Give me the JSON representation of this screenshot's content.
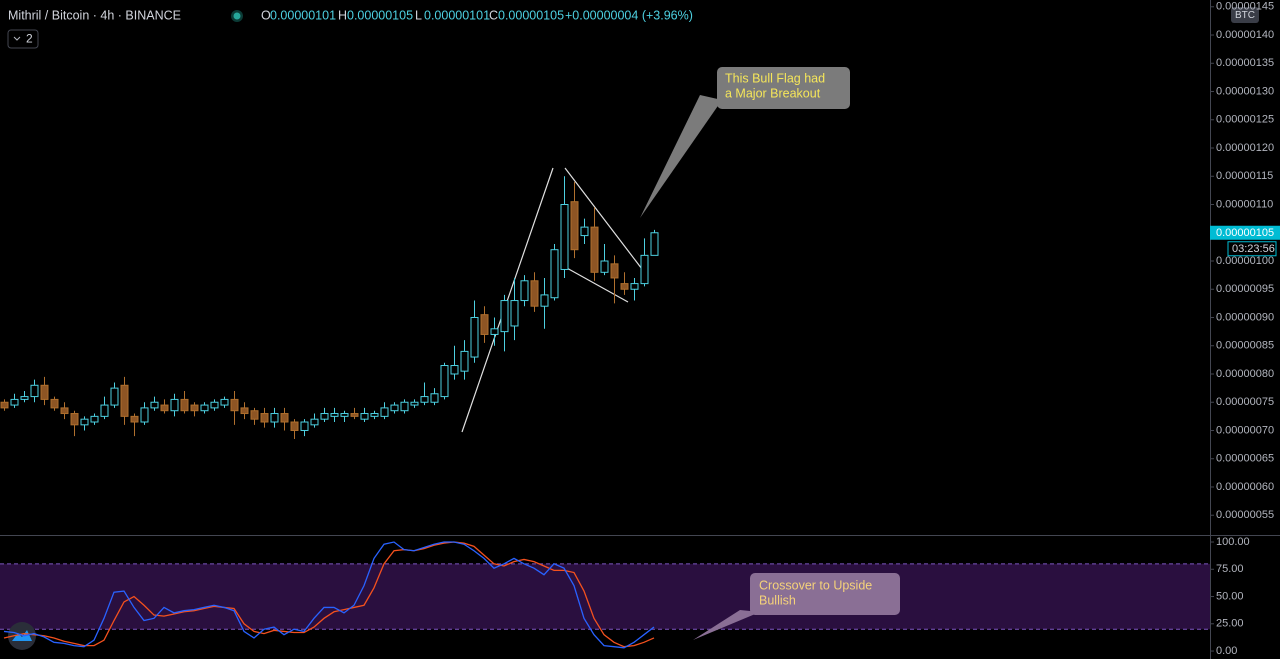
{
  "header": {
    "symbol": "Mithril / Bitcoin · 4h · BINANCE",
    "ohlc": [
      {
        "key": "O",
        "value": "0.00000101"
      },
      {
        "key": "H",
        "value": "0.00000105"
      },
      {
        "key": "L",
        "value": "0.00000101"
      },
      {
        "key": "C",
        "value": "0.00000105"
      }
    ],
    "change": "+0.00000004 (+3.96%)",
    "indicators": "2"
  },
  "chart_data": [
    {
      "type": "candlestick",
      "currency": "BTC",
      "up_color": "#4dd0e1",
      "down_color": "#8d5524",
      "ylim": [
        5.15e-07,
        1.462e-06
      ],
      "yticks": [
        {
          "value": 5.5e-07,
          "label": "0.00000055"
        },
        {
          "value": 6e-07,
          "label": "0.00000060"
        },
        {
          "value": 6.5e-07,
          "label": "0.00000065"
        },
        {
          "value": 7e-07,
          "label": "0.00000070"
        },
        {
          "value": 7.5e-07,
          "label": "0.00000075"
        },
        {
          "value": 8e-07,
          "label": "0.00000080"
        },
        {
          "value": 8.5e-07,
          "label": "0.00000085"
        },
        {
          "value": 9e-07,
          "label": "0.00000090"
        },
        {
          "value": 9.5e-07,
          "label": "0.00000095"
        },
        {
          "value": 1e-06,
          "label": "0.00000100"
        },
        {
          "value": 1.05e-06,
          "label": "0.00000105"
        },
        {
          "value": 1.1e-06,
          "label": "0.00000110"
        },
        {
          "value": 1.15e-06,
          "label": "0.00000115"
        },
        {
          "value": 1.2e-06,
          "label": "0.00000120"
        },
        {
          "value": 1.25e-06,
          "label": "0.00000125"
        },
        {
          "value": 1.3e-06,
          "label": "0.00000130"
        },
        {
          "value": 1.35e-06,
          "label": "0.00000135"
        },
        {
          "value": 1.4e-06,
          "label": "0.00000140"
        },
        {
          "value": 1.45e-06,
          "label": "0.00000145"
        }
      ],
      "last_price": {
        "value": 1.05e-06,
        "label": "0.00000105"
      },
      "countdown": "03:23:56",
      "annotations": [
        {
          "lines": [
            "This Bull Flag had",
            "a Major Breakout"
          ]
        }
      ],
      "open": [
        7.5e-07,
        7.45e-07,
        7.55e-07,
        7.6e-07,
        7.8e-07,
        7.55e-07,
        7.4e-07,
        7.3e-07,
        7.1e-07,
        7.15e-07,
        7.25e-07,
        7.45e-07,
        7.8e-07,
        7.25e-07,
        7.15e-07,
        7.4e-07,
        7.45e-07,
        7.35e-07,
        7.55e-07,
        7.45e-07,
        7.35e-07,
        7.4e-07,
        7.45e-07,
        7.55e-07,
        7.4e-07,
        7.35e-07,
        7.3e-07,
        7.15e-07,
        7.3e-07,
        7.15e-07,
        7e-07,
        7.1e-07,
        7.2e-07,
        7.25e-07,
        7.25e-07,
        7.3e-07,
        7.2e-07,
        7.25e-07,
        7.25e-07,
        7.35e-07,
        7.35e-07,
        7.45e-07,
        7.5e-07,
        7.5e-07,
        7.6e-07,
        8e-07,
        8.05e-07,
        8.3e-07,
        9.05e-07,
        8.7e-07,
        8.75e-07,
        8.85e-07,
        9.3e-07,
        9.65e-07,
        9.2e-07,
        9.35e-07,
        9.85e-07,
        1.105e-06,
        1.045e-06,
        1.06e-06,
        9.8e-07,
        9.95e-07,
        9.6e-07,
        9.5e-07,
        9.6e-07,
        1.01e-06
      ],
      "high": [
        7.55e-07,
        7.65e-07,
        7.7e-07,
        7.9e-07,
        7.95e-07,
        7.6e-07,
        7.5e-07,
        7.35e-07,
        7.25e-07,
        7.3e-07,
        7.6e-07,
        7.85e-07,
        7.95e-07,
        7.3e-07,
        7.5e-07,
        7.6e-07,
        7.55e-07,
        7.65e-07,
        7.7e-07,
        7.5e-07,
        7.5e-07,
        7.55e-07,
        7.6e-07,
        7.7e-07,
        7.5e-07,
        7.4e-07,
        7.4e-07,
        7.4e-07,
        7.4e-07,
        7.2e-07,
        7.2e-07,
        7.3e-07,
        7.4e-07,
        7.4e-07,
        7.35e-07,
        7.4e-07,
        7.4e-07,
        7.35e-07,
        7.5e-07,
        7.5e-07,
        7.55e-07,
        7.55e-07,
        7.85e-07,
        7.75e-07,
        8.2e-07,
        8.5e-07,
        8.6e-07,
        9.3e-07,
        9.2e-07,
        9e-07,
        9.4e-07,
        9.7e-07,
        9.75e-07,
        9.8e-07,
        9.7e-07,
        1.03e-06,
        1.15e-06,
        1.14e-06,
        1.075e-06,
        1.095e-06,
        1.03e-06,
        1.01e-06,
        9.8e-07,
        9.7e-07,
        1.04e-06,
        1.055e-06
      ],
      "low": [
        7.35e-07,
        7.4e-07,
        7.5e-07,
        7.5e-07,
        7.45e-07,
        7.35e-07,
        7.2e-07,
        6.9e-07,
        7e-07,
        7.1e-07,
        7.2e-07,
        7.4e-07,
        7.1e-07,
        6.9e-07,
        7.1e-07,
        7.35e-07,
        7.3e-07,
        7.25e-07,
        7.3e-07,
        7.25e-07,
        7.3e-07,
        7.35e-07,
        7.4e-07,
        7.1e-07,
        7.2e-07,
        7.1e-07,
        7.05e-07,
        7.05e-07,
        7e-07,
        6.85e-07,
        6.9e-07,
        7.05e-07,
        7.15e-07,
        7.15e-07,
        7.15e-07,
        7.2e-07,
        7.15e-07,
        7.2e-07,
        7.2e-07,
        7.3e-07,
        7.3e-07,
        7.4e-07,
        7.45e-07,
        7.45e-07,
        7.55e-07,
        7.9e-07,
        7.9e-07,
        8.2e-07,
        8.55e-07,
        8.5e-07,
        8.4e-07,
        8.6e-07,
        9.2e-07,
        9.1e-07,
        8.8e-07,
        9.3e-07,
        9.7e-07,
        1.005e-06,
        1.03e-06,
        9.65e-07,
        9.75e-07,
        9.25e-07,
        9.4e-07,
        9.3e-07,
        9.55e-07,
        1.01e-06
      ],
      "close": [
        7.4e-07,
        7.55e-07,
        7.6e-07,
        7.8e-07,
        7.55e-07,
        7.4e-07,
        7.3e-07,
        7.1e-07,
        7.2e-07,
        7.25e-07,
        7.45e-07,
        7.75e-07,
        7.25e-07,
        7.15e-07,
        7.4e-07,
        7.5e-07,
        7.35e-07,
        7.55e-07,
        7.35e-07,
        7.35e-07,
        7.45e-07,
        7.5e-07,
        7.55e-07,
        7.35e-07,
        7.3e-07,
        7.2e-07,
        7.15e-07,
        7.3e-07,
        7.15e-07,
        7e-07,
        7.15e-07,
        7.2e-07,
        7.3e-07,
        7.3e-07,
        7.3e-07,
        7.25e-07,
        7.3e-07,
        7.3e-07,
        7.4e-07,
        7.45e-07,
        7.5e-07,
        7.5e-07,
        7.6e-07,
        7.65e-07,
        8.15e-07,
        8.15e-07,
        8.4e-07,
        9e-07,
        8.7e-07,
        8.8e-07,
        9.3e-07,
        9.3e-07,
        9.65e-07,
        9.2e-07,
        9.4e-07,
        1.02e-06,
        1.1e-06,
        1.02e-06,
        1.06e-06,
        9.8e-07,
        1e-06,
        9.7e-07,
        9.5e-07,
        9.6e-07,
        1.01e-06,
        1.05e-06
      ]
    },
    {
      "type": "line",
      "ylim": [
        -7.3,
        104.6
      ],
      "yticks": [
        {
          "value": 0,
          "label": "0.00"
        },
        {
          "value": 25,
          "label": "25.00"
        },
        {
          "value": 50,
          "label": "50.00"
        },
        {
          "value": 75,
          "label": "75.00"
        },
        {
          "value": 100,
          "label": "100.00"
        }
      ],
      "bands": [
        20,
        80
      ],
      "band_color": "#2a0f3f",
      "annotations": [
        {
          "lines": [
            "Crossover to Upside",
            "Bullish"
          ]
        }
      ],
      "series": [
        {
          "color": "#2962ff",
          "values": [
            18,
            17,
            14,
            16,
            13,
            8,
            7,
            5,
            4,
            10,
            30,
            54,
            55,
            40,
            28,
            30,
            40,
            35,
            37,
            38,
            40,
            42,
            40,
            37,
            18,
            12,
            20,
            22,
            15,
            20,
            18,
            30,
            40,
            40,
            35,
            42,
            60,
            85,
            98,
            100,
            93,
            92,
            95,
            98,
            100,
            100,
            98,
            92,
            85,
            76,
            80,
            85,
            80,
            76,
            70,
            80,
            76,
            60,
            30,
            15,
            5,
            4,
            3,
            8,
            15,
            22
          ]
        },
        {
          "color": "#f4511e",
          "values": [
            12,
            14,
            16,
            15,
            14,
            12,
            9,
            7,
            5,
            5,
            10,
            28,
            45,
            50,
            42,
            33,
            32,
            34,
            36,
            37,
            39,
            41,
            40,
            39,
            25,
            18,
            16,
            19,
            18,
            17,
            17,
            22,
            30,
            36,
            38,
            40,
            42,
            58,
            80,
            92,
            93,
            92,
            94,
            97,
            99,
            100,
            99,
            96,
            88,
            80,
            78,
            82,
            84,
            82,
            78,
            74,
            74,
            72,
            55,
            30,
            15,
            8,
            4,
            5,
            8,
            12
          ]
        }
      ]
    }
  ]
}
